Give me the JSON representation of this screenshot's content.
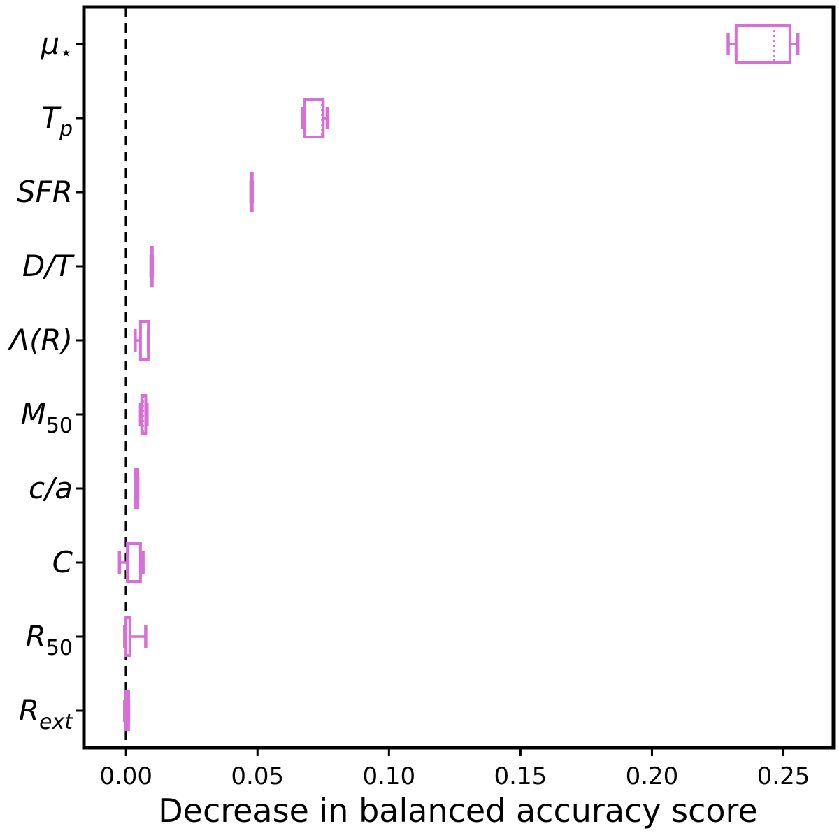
{
  "chart_data": {
    "type": "box",
    "orientation": "horizontal",
    "xlabel": "Decrease in balanced accuracy score",
    "ylabel": "",
    "xlim": [
      -0.016,
      0.269
    ],
    "xticks": [
      0.0,
      0.05,
      0.1,
      0.15,
      0.2,
      0.25
    ],
    "xtick_labels": [
      "0.00",
      "0.05",
      "0.10",
      "0.15",
      "0.20",
      "0.25"
    ],
    "reference_line": {
      "x": 0.0,
      "style": "dashed",
      "color": "#000000"
    },
    "box_color": "#d670d6",
    "median_style": "dotted",
    "features": [
      {
        "label": "μ",
        "sup": "⋆",
        "sub": "",
        "whisker_low": 0.229,
        "q1": 0.232,
        "median": 0.2465,
        "q3": 0.2525,
        "whisker_high": 0.2555
      },
      {
        "label": "T",
        "sup": "",
        "sub": "p",
        "whisker_low": 0.067,
        "q1": 0.068,
        "median": 0.0745,
        "q3": 0.075,
        "whisker_high": 0.0765
      },
      {
        "label": "SFR",
        "sup": "",
        "sub": "",
        "whisker_low": 0.0475,
        "q1": 0.0475,
        "median": 0.0475,
        "q3": 0.048,
        "whisker_high": 0.048
      },
      {
        "label": "D/T",
        "sup": "",
        "sub": "",
        "whisker_low": 0.0095,
        "q1": 0.0095,
        "median": 0.0095,
        "q3": 0.01,
        "whisker_high": 0.01
      },
      {
        "label": "Λ(R)",
        "sup": "",
        "sub": "",
        "whisker_low": 0.0035,
        "q1": 0.0055,
        "median": 0.0085,
        "q3": 0.0085,
        "whisker_high": 0.0085
      },
      {
        "label": "M",
        "sup": "",
        "sub": "50",
        "whisker_low": 0.0055,
        "q1": 0.006,
        "median": 0.0065,
        "q3": 0.0075,
        "whisker_high": 0.008
      },
      {
        "label": "c/a",
        "sup": "",
        "sub": "",
        "whisker_low": 0.0035,
        "q1": 0.0035,
        "median": 0.004,
        "q3": 0.0045,
        "whisker_high": 0.0045
      },
      {
        "label": "C",
        "sup": "",
        "sub": "",
        "whisker_low": -0.0025,
        "q1": 0.0005,
        "median": 0.0055,
        "q3": 0.0055,
        "whisker_high": 0.0065
      },
      {
        "label": "R",
        "sup": "",
        "sub": "50",
        "whisker_low": -0.0005,
        "q1": 0.0,
        "median": 0.0,
        "q3": 0.0015,
        "whisker_high": 0.0075
      },
      {
        "label": "R",
        "sup": "",
        "sub": "ext",
        "whisker_low": -0.0005,
        "q1": -0.0003,
        "median": 0.0,
        "q3": 0.001,
        "whisker_high": 0.001
      }
    ]
  }
}
